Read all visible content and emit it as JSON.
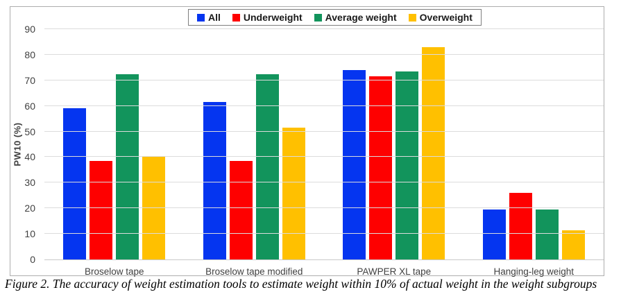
{
  "figure": {
    "caption": "Figure 2. The accuracy of weight estimation tools to estimate weight within 10% of actual weight in the weight subgroups"
  },
  "chart_data": {
    "type": "bar",
    "title": "",
    "xlabel": "",
    "ylabel": "PW10 (%)",
    "ylim": [
      0,
      90
    ],
    "yticks": [
      0,
      10,
      20,
      30,
      40,
      50,
      60,
      70,
      80,
      90
    ],
    "grid": true,
    "legend_position": "top-center",
    "categories": [
      "Broselow tape",
      "Broselow tape modified",
      "PAWPER XL tape",
      "Hanging-leg weight"
    ],
    "series": [
      {
        "name": "All",
        "color": "#0535F0",
        "values": [
          59,
          61.5,
          74,
          19.5
        ]
      },
      {
        "name": "Underweight",
        "color": "#FE0000",
        "values": [
          38.5,
          38.5,
          71.5,
          26
        ]
      },
      {
        "name": "Average weight",
        "color": "#12945C",
        "values": [
          72.5,
          72.5,
          73.5,
          19.5
        ]
      },
      {
        "name": "Overweight",
        "color": "#FFC000",
        "values": [
          40,
          51.5,
          83,
          11.5
        ]
      }
    ]
  },
  "colors": {
    "gridline": "#DCDCDC",
    "axis_text": "#3F3F3F",
    "frame_border": "#ADADAD",
    "legend_border": "#7F7F7F"
  }
}
